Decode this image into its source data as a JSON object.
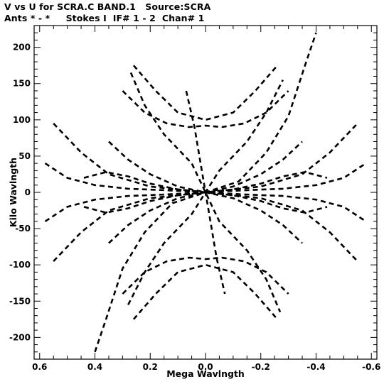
{
  "chart_data": {
    "type": "scatter",
    "title": "V vs U for SCRA.C BAND.1   Source:SCRA",
    "subtitle": "Ants * - *     Stokes I  IF# 1 - 2  Chan# 1",
    "xlabel": "Mega Wavlngth",
    "ylabel": "Kilo Wavlngth",
    "xlim": [
      0.62,
      -0.62
    ],
    "ylim": [
      -230,
      230
    ],
    "xticks": [
      0.6,
      0.4,
      0.2,
      0.0,
      -0.2,
      -0.4,
      -0.6
    ],
    "xtick_labels": [
      "0.6",
      "0.4",
      "0.2",
      "0.0",
      "-0.2",
      "-0.4",
      "-0.6"
    ],
    "yticks": [
      200,
      150,
      100,
      50,
      0,
      -50,
      -100,
      -150,
      -200
    ],
    "ytick_labels": [
      "200",
      "150",
      "100",
      "50",
      "0",
      "-50",
      "-100",
      "-150",
      "-200"
    ],
    "grid": false,
    "marker": "short dashes (uv track segments, symmetric about origin)",
    "tracks": [
      {
        "name": "",
        "points": [
          [
            0.4,
            -220
          ],
          [
            0.36,
            -175
          ],
          [
            0.3,
            -105
          ],
          [
            0.22,
            -55
          ],
          [
            0.12,
            -15
          ],
          [
            0.0,
            0
          ],
          [
            -0.12,
            15
          ],
          [
            -0.22,
            55
          ],
          [
            -0.3,
            105
          ],
          [
            -0.36,
            175
          ],
          [
            -0.4,
            220
          ]
        ]
      },
      {
        "name": "",
        "points": [
          [
            0.58,
            40
          ],
          [
            0.5,
            20
          ],
          [
            0.4,
            10
          ],
          [
            0.28,
            5
          ],
          [
            0.15,
            3
          ],
          [
            0.0,
            0
          ],
          [
            -0.15,
            -3
          ],
          [
            -0.28,
            -5
          ],
          [
            -0.4,
            -10
          ],
          [
            -0.5,
            -20
          ],
          [
            -0.58,
            -40
          ]
        ]
      },
      {
        "name": "",
        "points": [
          [
            0.58,
            -40
          ],
          [
            0.5,
            -20
          ],
          [
            0.4,
            -10
          ],
          [
            0.28,
            -5
          ],
          [
            0.15,
            -3
          ],
          [
            0.0,
            0
          ],
          [
            -0.15,
            3
          ],
          [
            -0.28,
            5
          ],
          [
            -0.4,
            10
          ],
          [
            -0.5,
            20
          ],
          [
            -0.58,
            40
          ]
        ]
      },
      {
        "name": "",
        "points": [
          [
            0.55,
            -95
          ],
          [
            0.45,
            -55
          ],
          [
            0.35,
            -25
          ],
          [
            0.2,
            -8
          ],
          [
            0.0,
            0
          ],
          [
            -0.2,
            8
          ],
          [
            -0.35,
            25
          ],
          [
            -0.45,
            55
          ],
          [
            -0.55,
            95
          ]
        ]
      },
      {
        "name": "",
        "points": [
          [
            0.55,
            95
          ],
          [
            0.45,
            55
          ],
          [
            0.35,
            25
          ],
          [
            0.2,
            8
          ],
          [
            0.0,
            0
          ],
          [
            -0.2,
            -8
          ],
          [
            -0.35,
            -25
          ],
          [
            -0.45,
            -55
          ],
          [
            -0.55,
            -95
          ]
        ]
      },
      {
        "name": "",
        "points": [
          [
            0.26,
            175
          ],
          [
            0.18,
            140
          ],
          [
            0.1,
            110
          ],
          [
            0.0,
            100
          ],
          [
            -0.1,
            110
          ],
          [
            -0.18,
            140
          ],
          [
            -0.26,
            175
          ]
        ]
      },
      {
        "name": "",
        "points": [
          [
            0.26,
            -175
          ],
          [
            0.18,
            -140
          ],
          [
            0.1,
            -110
          ],
          [
            0.0,
            -100
          ],
          [
            -0.1,
            -110
          ],
          [
            -0.18,
            -140
          ],
          [
            -0.26,
            -175
          ]
        ]
      },
      {
        "name": "",
        "points": [
          [
            0.27,
            165
          ],
          [
            0.22,
            120
          ],
          [
            0.15,
            80
          ],
          [
            0.05,
            40
          ],
          [
            0.0,
            0
          ],
          [
            -0.05,
            -40
          ],
          [
            -0.15,
            -80
          ],
          [
            -0.22,
            -120
          ],
          [
            -0.27,
            -165
          ]
        ]
      },
      {
        "name": "",
        "points": [
          [
            0.28,
            -155
          ],
          [
            0.22,
            -110
          ],
          [
            0.15,
            -70
          ],
          [
            0.05,
            -30
          ],
          [
            0.0,
            0
          ],
          [
            -0.05,
            30
          ],
          [
            -0.15,
            70
          ],
          [
            -0.22,
            110
          ],
          [
            -0.28,
            155
          ]
        ]
      },
      {
        "name": "",
        "points": [
          [
            0.44,
            20
          ],
          [
            0.36,
            28
          ],
          [
            0.28,
            22
          ],
          [
            0.2,
            12
          ],
          [
            0.1,
            4
          ],
          [
            0.0,
            0
          ],
          [
            -0.1,
            -4
          ],
          [
            -0.2,
            -12
          ],
          [
            -0.28,
            -22
          ],
          [
            -0.36,
            -28
          ],
          [
            -0.44,
            -20
          ]
        ]
      },
      {
        "name": "",
        "points": [
          [
            0.44,
            -20
          ],
          [
            0.36,
            -28
          ],
          [
            0.28,
            -22
          ],
          [
            0.2,
            -12
          ],
          [
            0.1,
            -4
          ],
          [
            0.0,
            0
          ],
          [
            -0.1,
            4
          ],
          [
            -0.2,
            12
          ],
          [
            -0.28,
            22
          ],
          [
            -0.36,
            28
          ],
          [
            -0.44,
            20
          ]
        ]
      },
      {
        "name": "",
        "points": [
          [
            0.35,
            70
          ],
          [
            0.28,
            45
          ],
          [
            0.2,
            25
          ],
          [
            0.1,
            8
          ],
          [
            0.0,
            0
          ],
          [
            -0.1,
            -8
          ],
          [
            -0.2,
            -25
          ],
          [
            -0.28,
            -45
          ],
          [
            -0.35,
            -70
          ]
        ]
      },
      {
        "name": "",
        "points": [
          [
            0.35,
            -70
          ],
          [
            0.28,
            -45
          ],
          [
            0.2,
            -25
          ],
          [
            0.1,
            -8
          ],
          [
            0.0,
            0
          ],
          [
            -0.1,
            8
          ],
          [
            -0.2,
            25
          ],
          [
            -0.28,
            45
          ],
          [
            -0.35,
            70
          ]
        ]
      },
      {
        "name": "",
        "points": [
          [
            0.07,
            140
          ],
          [
            0.04,
            90
          ],
          [
            0.02,
            45
          ],
          [
            0.0,
            0
          ],
          [
            -0.02,
            -45
          ],
          [
            -0.04,
            -90
          ],
          [
            -0.07,
            -140
          ]
        ]
      },
      {
        "name": "",
        "points": [
          [
            0.3,
            140
          ],
          [
            0.22,
            110
          ],
          [
            0.14,
            95
          ],
          [
            0.06,
            90
          ],
          [
            0.0,
            92
          ],
          [
            -0.06,
            90
          ],
          [
            -0.14,
            95
          ],
          [
            -0.22,
            110
          ],
          [
            -0.3,
            140
          ]
        ]
      },
      {
        "name": "",
        "points": [
          [
            0.3,
            -140
          ],
          [
            0.22,
            -110
          ],
          [
            0.14,
            -95
          ],
          [
            0.06,
            -90
          ],
          [
            0.0,
            -92
          ],
          [
            -0.06,
            -90
          ],
          [
            -0.14,
            -95
          ],
          [
            -0.22,
            -110
          ],
          [
            -0.3,
            -140
          ]
        ]
      }
    ]
  }
}
